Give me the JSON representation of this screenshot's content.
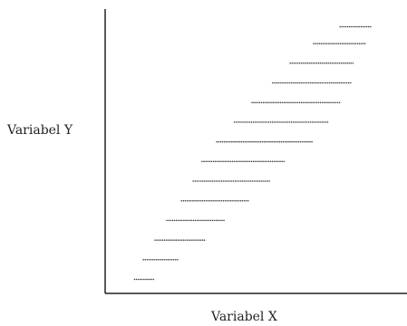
{
  "chart_data": {
    "type": "scatter",
    "xlabel": "Variabel X",
    "ylabel": "Variabel Y",
    "xlim": [
      0,
      100
    ],
    "ylim": [
      0,
      100
    ],
    "grid": false,
    "legend": "none",
    "rows": [
      {
        "y": 5,
        "x_start": 10,
        "x_end": 17
      },
      {
        "y": 12,
        "x_start": 13,
        "x_end": 25
      },
      {
        "y": 19,
        "x_start": 17,
        "x_end": 34
      },
      {
        "y": 26,
        "x_start": 21,
        "x_end": 41
      },
      {
        "y": 33,
        "x_start": 26,
        "x_end": 49
      },
      {
        "y": 40,
        "x_start": 30,
        "x_end": 56
      },
      {
        "y": 47,
        "x_start": 33,
        "x_end": 61
      },
      {
        "y": 54,
        "x_start": 38,
        "x_end": 71
      },
      {
        "y": 61,
        "x_start": 44,
        "x_end": 76
      },
      {
        "y": 68,
        "x_start": 50,
        "x_end": 80
      },
      {
        "y": 75,
        "x_start": 57,
        "x_end": 84
      },
      {
        "y": 82,
        "x_start": 63,
        "x_end": 85
      },
      {
        "y": 89,
        "x_start": 71,
        "x_end": 89
      },
      {
        "y": 95,
        "x_start": 80,
        "x_end": 91
      }
    ],
    "point_color": "#333333",
    "axis_color": "#222222"
  }
}
